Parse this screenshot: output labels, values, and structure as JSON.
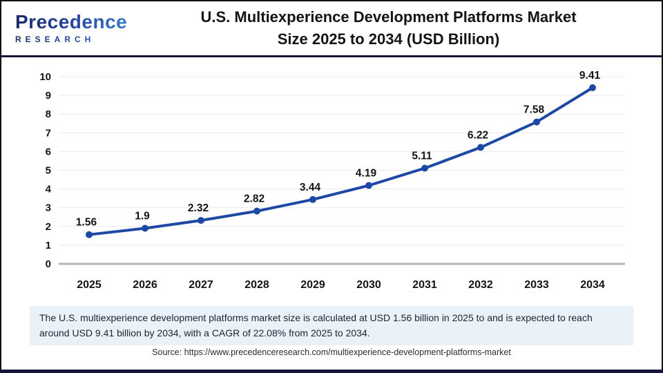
{
  "header": {
    "logo": {
      "name": "Precedence Research",
      "word": "Precedence",
      "sub": "RESEARCH"
    },
    "title_line1": "U.S. Multiexperience Development Platforms Market",
    "title_line2": "Size 2025 to 2034 (USD Billion)"
  },
  "chart_data": {
    "type": "line",
    "title": "U.S. Multiexperience Development Platforms Market Size 2025 to 2034 (USD Billion)",
    "categories": [
      "2025",
      "2026",
      "2027",
      "2028",
      "2029",
      "2030",
      "2031",
      "2032",
      "2033",
      "2034"
    ],
    "values": [
      1.56,
      1.9,
      2.32,
      2.82,
      3.44,
      4.19,
      5.11,
      6.22,
      7.58,
      9.41
    ],
    "point_labels": [
      "1.56",
      "1.9",
      "2.32",
      "2.82",
      "3.44",
      "4.19",
      "5.11",
      "6.22",
      "7.58",
      "9.41"
    ],
    "xlabel": "",
    "ylabel": "",
    "ylim": [
      0,
      10
    ],
    "ytick_step": 1,
    "grid": true,
    "legend": "none",
    "line_color": "#1d49a5",
    "marker_color": "#1d49a5",
    "grid_color": "#eaeaea",
    "baseline_color": "#b5b5b5",
    "tick_color": "#141414",
    "label_color": "#141414"
  },
  "footnote": "The U.S. multiexperience development platforms market size is calculated at USD 1.56 billion in 2025 to and is expected to reach around USD 9.41 billion by 2034, with a CAGR of 22.08% from 2025 to 2034.",
  "source": "Source: https://www.precedenceresearch.com/multiexperience-development-platforms-market",
  "colors": {
    "accent_navy": "#16153a",
    "footnote_bg": "#e9f1f9",
    "border": "#111111"
  }
}
